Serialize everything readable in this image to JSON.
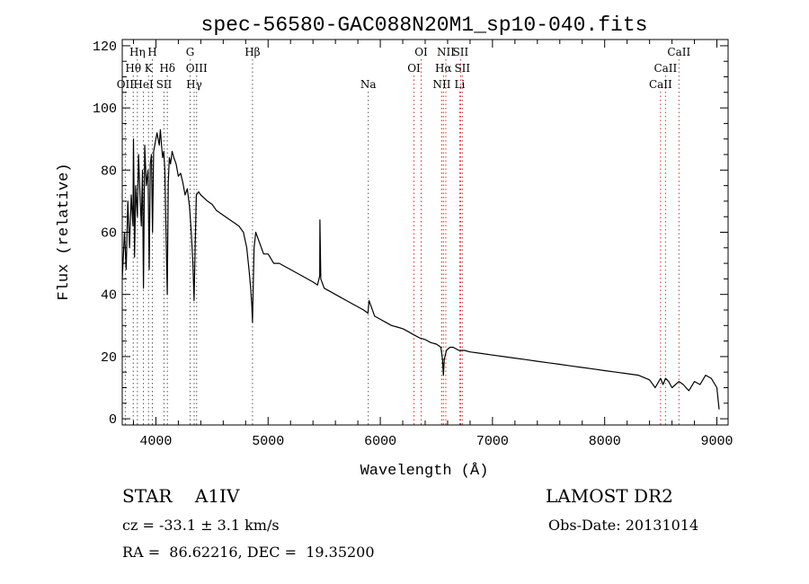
{
  "chart_data": {
    "type": "line",
    "title": "spec-56580-GAC088N20M1_sp10-040.fits",
    "xlabel": "Wavelength (Å)",
    "ylabel": "Flux (relative)",
    "xlim": [
      3700,
      9100
    ],
    "ylim": [
      -2,
      122
    ],
    "xticks": [
      "4000",
      "5000",
      "6000",
      "7000",
      "8000",
      "9000"
    ],
    "yticks": [
      "0",
      "20",
      "40",
      "60",
      "80",
      "100",
      "120"
    ],
    "grid": false,
    "series": [
      {
        "x": [
          3700,
          3720,
          3735,
          3750,
          3765,
          3780,
          3795,
          3800,
          3810,
          3820,
          3835,
          3845,
          3860,
          3870,
          3880,
          3889,
          3900,
          3915,
          3930,
          3940,
          3950,
          3960,
          3970,
          3980,
          3990,
          4000,
          4010,
          4020,
          4030,
          4040,
          4050,
          4060,
          4070,
          4080,
          4090,
          4101,
          4110,
          4120,
          4130,
          4145,
          4160,
          4180,
          4200,
          4220,
          4240,
          4260,
          4280,
          4300,
          4315,
          4330,
          4340,
          4350,
          4360,
          4380,
          4400,
          4430,
          4460,
          4500,
          4540,
          4580,
          4620,
          4660,
          4700,
          4740,
          4780,
          4810,
          4830,
          4845,
          4855,
          4861,
          4866,
          4875,
          4890,
          4920,
          4960,
          5000,
          5050,
          5100,
          5150,
          5200,
          5250,
          5300,
          5350,
          5400,
          5440,
          5460,
          5462,
          5470,
          5500,
          5550,
          5600,
          5650,
          5700,
          5750,
          5800,
          5850,
          5890,
          5900,
          5950,
          6000,
          6050,
          6100,
          6150,
          6200,
          6250,
          6300,
          6350,
          6400,
          6450,
          6500,
          6540,
          6555,
          6563,
          6570,
          6590,
          6620,
          6650,
          6700,
          6750,
          6800,
          6900,
          7000,
          7100,
          7200,
          7300,
          7400,
          7500,
          7600,
          7700,
          7800,
          7900,
          8000,
          8100,
          8200,
          8300,
          8400,
          8450,
          8498,
          8520,
          8542,
          8570,
          8600,
          8662,
          8700,
          8750,
          8800,
          8850,
          8900,
          8950,
          9000,
          9020
        ],
        "values": [
          45,
          60,
          48,
          70,
          55,
          72,
          62,
          90,
          52,
          75,
          65,
          85,
          70,
          62,
          80,
          42,
          88,
          75,
          80,
          48,
          82,
          85,
          60,
          86,
          88,
          90,
          92,
          90,
          88,
          93,
          88,
          84,
          86,
          80,
          60,
          40,
          76,
          84,
          82,
          86,
          84,
          82,
          78,
          79,
          76,
          72,
          74,
          68,
          60,
          50,
          38,
          55,
          72,
          73,
          72,
          71,
          70,
          69,
          67,
          66,
          65,
          64,
          63,
          62,
          60,
          55,
          48,
          42,
          36,
          31,
          40,
          55,
          60,
          57,
          53,
          53,
          50,
          50,
          49,
          48,
          47,
          46,
          45,
          44,
          43,
          46,
          64,
          45,
          42,
          41,
          40,
          39,
          38,
          37,
          36,
          35,
          34,
          38,
          33,
          32,
          31,
          30,
          29.5,
          29,
          28,
          27,
          26,
          25.5,
          24.5,
          24,
          23,
          19,
          14,
          19,
          22,
          23,
          23,
          22,
          22,
          21.5,
          21,
          20.5,
          20,
          19.5,
          19,
          18.5,
          18,
          17.5,
          17,
          16.5,
          16,
          15.5,
          15,
          14.5,
          14,
          12.5,
          10,
          13,
          11,
          13,
          12,
          10,
          12,
          11,
          9,
          12,
          11,
          14,
          13,
          10,
          3
        ]
      }
    ],
    "line_markers": [
      {
        "label": "Hη",
        "wave": 3835,
        "row": 0
      },
      {
        "label": "H",
        "wave": 3968,
        "row": 0
      },
      {
        "label": "G",
        "wave": 4305,
        "row": 0
      },
      {
        "label": "Hβ",
        "wave": 4861,
        "row": 0
      },
      {
        "label": "OI",
        "wave": 6364,
        "row": 0
      },
      {
        "label": "NII",
        "wave": 6584,
        "row": 0
      },
      {
        "label": "SII",
        "wave": 6716,
        "row": 0
      },
      {
        "label": "CaII",
        "wave": 8662,
        "row": 0
      },
      {
        "label": "Hθ",
        "wave": 3798,
        "row": 1
      },
      {
        "label": "K",
        "wave": 3934,
        "row": 1
      },
      {
        "label": "Hδ",
        "wave": 4102,
        "row": 1
      },
      {
        "label": "OIII",
        "wave": 4363,
        "row": 1
      },
      {
        "label": "OI",
        "wave": 6300,
        "row": 1
      },
      {
        "label": "Hα",
        "wave": 6563,
        "row": 1
      },
      {
        "label": "SII",
        "wave": 6731,
        "row": 1
      },
      {
        "label": "CaII",
        "wave": 8542,
        "row": 1
      },
      {
        "label": "OII",
        "wave": 3727,
        "row": 2
      },
      {
        "label": "HeI",
        "wave": 3889,
        "row": 2
      },
      {
        "label": "SII",
        "wave": 4072,
        "row": 2
      },
      {
        "label": "Hγ",
        "wave": 4341,
        "row": 2
      },
      {
        "label": "Na",
        "wave": 5893,
        "row": 2
      },
      {
        "label": "NII",
        "wave": 6548,
        "row": 2
      },
      {
        "label": "Li",
        "wave": 6708,
        "row": 2
      },
      {
        "label": "CaII",
        "wave": 8498,
        "row": 2
      }
    ]
  },
  "info": {
    "object_class": "STAR    A1IV",
    "survey": "LAMOST DR2",
    "redshift": "cz = -33.1 ± 3.1 km/s",
    "obs_date": "Obs-Date: 20131014",
    "coordinates": "RA =  86.62216, DEC =  19.35200"
  }
}
